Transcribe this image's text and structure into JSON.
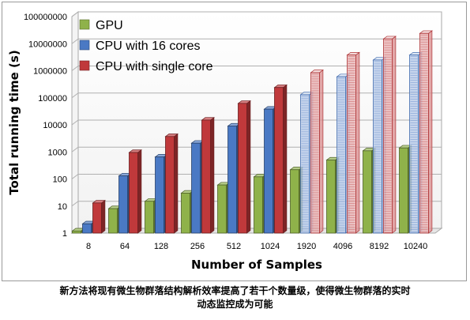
{
  "chart_data": {
    "type": "bar",
    "subtype": "3d-clustered-column",
    "xlabel": "Number of Samples",
    "ylabel": "Total running time (s)",
    "yscale": "log10",
    "ylim": [
      1,
      100000000
    ],
    "y_ticks": [
      "1",
      "10",
      "100",
      "1000",
      "10000",
      "100000",
      "1000000",
      "10000000",
      "100000000"
    ],
    "categories": [
      "8",
      "64",
      "128",
      "256",
      "512",
      "1024",
      "1920",
      "4096",
      "8192",
      "10240"
    ],
    "series": [
      {
        "name": "GPU",
        "color": "#8fb24a",
        "values": [
          1.2,
          8,
          15,
          30,
          60,
          120,
          220,
          500,
          1100,
          1400
        ]
      },
      {
        "name": "CPU with 16 cores",
        "color": "#4a79c4",
        "values": [
          2.2,
          130,
          650,
          2100,
          9000,
          38000,
          130000,
          600000,
          2500000,
          3800000
        ]
      },
      {
        "name": "CPU with single core",
        "color": "#c0393b",
        "values": [
          13,
          950,
          3700,
          15000,
          62000,
          240000,
          850000,
          3800000,
          15000000,
          24000000
        ]
      }
    ],
    "projected_from_category": "1920",
    "grid": true,
    "legend_position": "top-left"
  },
  "caption_lines": [
    "新方法将现有微生物群落结构解析效率提高了若干个数量级，使得微生物群落的实时",
    "动态监控成为可能"
  ]
}
